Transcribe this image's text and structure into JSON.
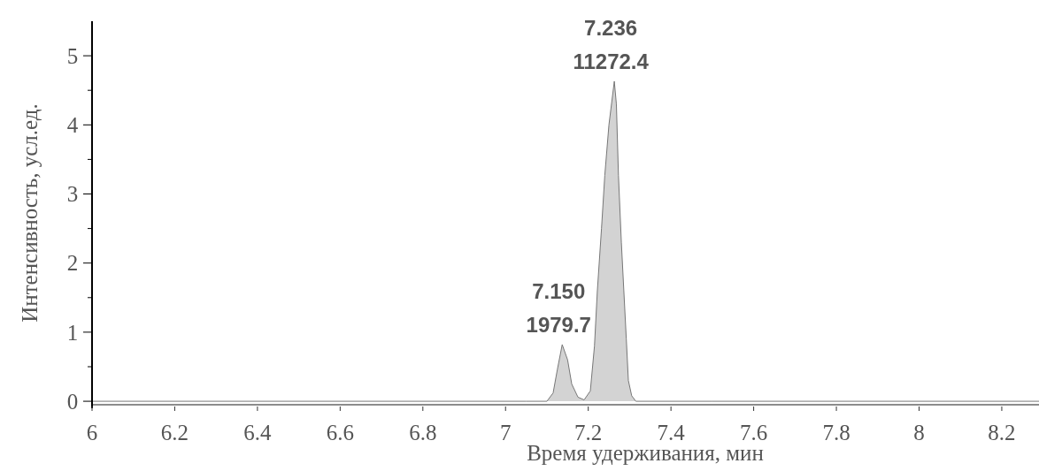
{
  "chart_data": {
    "type": "area",
    "xlabel": "Время удерживания, мин",
    "ylabel": "Интенсивность, усл.ед.",
    "xlim": [
      6,
      8.29
    ],
    "ylim": [
      -0.05,
      5.5
    ],
    "xticks": [
      6,
      6.2,
      6.4,
      6.6,
      6.8,
      7,
      7.2,
      7.4,
      7.6,
      7.8,
      8,
      8.2
    ],
    "yticks": [
      0,
      1,
      2,
      3,
      4,
      5
    ],
    "grid": false,
    "series": [
      {
        "color": "#d3d3d3",
        "x": [
          6,
          7.05,
          7.1,
          7.115,
          7.125,
          7.137,
          7.15,
          7.16,
          7.175,
          7.19,
          7.205,
          7.215,
          7.222,
          7.232,
          7.24,
          7.25,
          7.263,
          7.268,
          7.273,
          7.28,
          7.286,
          7.292,
          7.297,
          7.305,
          7.315,
          7.5,
          8.29
        ],
        "values": [
          0,
          0,
          0,
          0.12,
          0.45,
          0.82,
          0.6,
          0.25,
          0.06,
          0.02,
          0.15,
          0.8,
          1.6,
          2.5,
          3.27,
          4.0,
          4.63,
          4.3,
          3.27,
          2.3,
          1.6,
          0.9,
          0.3,
          0.08,
          0,
          0,
          0
        ]
      }
    ],
    "annotations": [
      {
        "text": "7.150\n1979.7",
        "x": 7.137,
        "y": 0.82
      },
      {
        "text": "7.236\n11272.4",
        "x": 7.263,
        "y": 4.63
      }
    ]
  }
}
